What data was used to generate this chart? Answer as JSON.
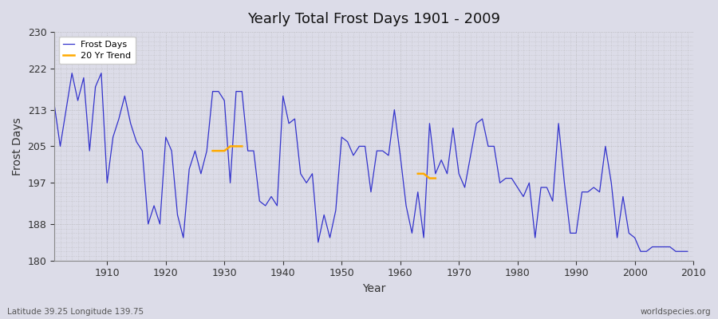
{
  "title": "Yearly Total Frost Days 1901 - 2009",
  "xlabel": "Year",
  "ylabel": "Frost Days",
  "lat_lon_label": "Latitude 39.25 Longitude 139.75",
  "watermark": "worldspecies.org",
  "ylim": [
    180,
    230
  ],
  "yticks": [
    180,
    188,
    197,
    205,
    213,
    222,
    230
  ],
  "bg_color": "#dcdce8",
  "line_color": "#3333cc",
  "trend_color": "#ffaa00",
  "years": [
    1901,
    1902,
    1903,
    1904,
    1905,
    1906,
    1907,
    1908,
    1909,
    1910,
    1911,
    1912,
    1913,
    1914,
    1915,
    1916,
    1917,
    1918,
    1919,
    1920,
    1921,
    1922,
    1923,
    1924,
    1925,
    1926,
    1927,
    1928,
    1929,
    1930,
    1931,
    1932,
    1933,
    1934,
    1935,
    1936,
    1937,
    1938,
    1939,
    1940,
    1941,
    1942,
    1943,
    1944,
    1945,
    1946,
    1947,
    1948,
    1949,
    1950,
    1951,
    1952,
    1953,
    1954,
    1955,
    1956,
    1957,
    1958,
    1959,
    1960,
    1961,
    1962,
    1963,
    1964,
    1965,
    1966,
    1967,
    1968,
    1969,
    1970,
    1971,
    1972,
    1973,
    1974,
    1975,
    1976,
    1977,
    1978,
    1979,
    1980,
    1981,
    1982,
    1983,
    1984,
    1985,
    1986,
    1987,
    1988,
    1989,
    1990,
    1991,
    1992,
    1993,
    1994,
    1995,
    1996,
    1997,
    1998,
    1999,
    2000,
    2001,
    2002,
    2003,
    2004,
    2005,
    2006,
    2007,
    2008,
    2009
  ],
  "frost_days": [
    214,
    205,
    213,
    221,
    215,
    220,
    204,
    218,
    221,
    197,
    207,
    211,
    216,
    210,
    206,
    204,
    188,
    192,
    188,
    207,
    204,
    190,
    185,
    200,
    204,
    199,
    204,
    217,
    217,
    215,
    197,
    217,
    217,
    204,
    204,
    193,
    192,
    194,
    192,
    216,
    210,
    211,
    199,
    197,
    199,
    184,
    190,
    185,
    191,
    207,
    206,
    203,
    205,
    205,
    195,
    204,
    204,
    203,
    213,
    203,
    192,
    186,
    195,
    185,
    210,
    199,
    202,
    199,
    209,
    199,
    196,
    203,
    210,
    211,
    205,
    205,
    197,
    198,
    198,
    196,
    194,
    197,
    185,
    196,
    196,
    193,
    210,
    197,
    186,
    186,
    195,
    195,
    196,
    195,
    205,
    197,
    185,
    194,
    186,
    185,
    182,
    182,
    183,
    183,
    183,
    183,
    182,
    182,
    182
  ],
  "trend_seg1_years": [
    1928,
    1929,
    1930,
    1931,
    1932,
    1933
  ],
  "trend_seg1_values": [
    204,
    204,
    204,
    205,
    205,
    205
  ],
  "trend_seg2_years": [
    1963,
    1964,
    1965,
    1966
  ],
  "trend_seg2_values": [
    199,
    199,
    198,
    198
  ]
}
